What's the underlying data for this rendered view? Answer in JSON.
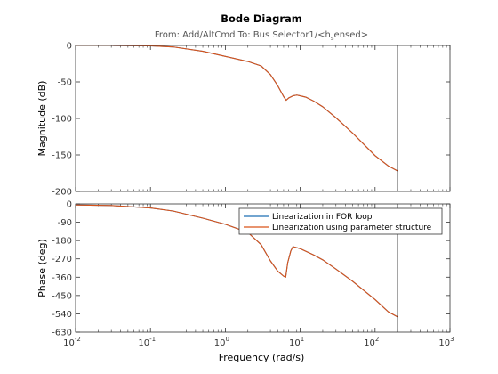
{
  "chart_data": {
    "type": "line",
    "title": "Bode Diagram",
    "subtitle_prefix": "From: Add/AltCmd  To: Bus Selector1/<h",
    "subtitle_sub": "s",
    "subtitle_suffix": "ensed>",
    "xlabel": "Frequency  (rad/s)",
    "xscale": "log",
    "xlim": [
      0.01,
      1000
    ],
    "x_tick_labels": [
      {
        "base": "10",
        "exp": "-2"
      },
      {
        "base": "10",
        "exp": "-1"
      },
      {
        "base": "10",
        "exp": "0"
      },
      {
        "base": "10",
        "exp": "1"
      },
      {
        "base": "10",
        "exp": "2"
      },
      {
        "base": "10",
        "exp": "3"
      }
    ],
    "vertical_marker_x": 200,
    "legend": {
      "placement": "upper-right of phase plot",
      "entries": [
        "Linearization in FOR loop",
        "Linearization using parameter structure"
      ]
    },
    "colors": {
      "series1": "#1f6fb4",
      "series2": "#d95319",
      "marker": "#000000",
      "axes": "#333333"
    },
    "panels": [
      {
        "name": "magnitude",
        "ylabel": "Magnitude (dB)",
        "ylim": [
          -200,
          0
        ],
        "yticks": [
          0,
          -50,
          -100,
          -150,
          -200
        ],
        "series": [
          {
            "name": "Linearization in FOR loop",
            "x": [
              0.01,
              0.03,
              0.1,
              0.2,
              0.5,
              1,
              2,
              3,
              4,
              5,
              6,
              6.5,
              7,
              8,
              9,
              10,
              12,
              15,
              20,
              30,
              50,
              100,
              150,
              200
            ],
            "y": [
              0,
              0,
              -0.5,
              -2,
              -8,
              -15,
              -22,
              -28,
              -40,
              -55,
              -70,
              -75,
              -72,
              -69,
              -68,
              -69,
              -71,
              -76,
              -84,
              -99,
              -120,
              -151,
              -165,
              -172
            ]
          },
          {
            "name": "Linearization using parameter structure",
            "x": [
              0.01,
              0.03,
              0.1,
              0.2,
              0.5,
              1,
              2,
              3,
              4,
              5,
              6,
              6.5,
              7,
              8,
              9,
              10,
              12,
              15,
              20,
              30,
              50,
              100,
              150,
              200
            ],
            "y": [
              0,
              0,
              -0.5,
              -2,
              -8,
              -15,
              -22,
              -28,
              -40,
              -55,
              -70,
              -75,
              -72,
              -69,
              -68,
              -69,
              -71,
              -76,
              -84,
              -99,
              -120,
              -151,
              -165,
              -172
            ]
          }
        ]
      },
      {
        "name": "phase",
        "ylabel": "Phase (deg)",
        "ylim": [
          -630,
          0
        ],
        "yticks": [
          0,
          -90,
          -180,
          -270,
          -360,
          -450,
          -540,
          -630
        ],
        "series": [
          {
            "name": "Linearization in FOR loop",
            "x": [
              0.01,
              0.03,
              0.1,
              0.2,
              0.5,
              1,
              2,
              3,
              4,
              5,
              6,
              6.4,
              6.8,
              7.5,
              8,
              9,
              10,
              15,
              20,
              30,
              50,
              100,
              150,
              200
            ],
            "y": [
              -5,
              -8,
              -20,
              -35,
              -70,
              -100,
              -140,
              -200,
              -280,
              -330,
              -355,
              -360,
              -290,
              -230,
              -210,
              -215,
              -220,
              -250,
              -275,
              -320,
              -380,
              -470,
              -530,
              -555
            ]
          },
          {
            "name": "Linearization using parameter structure",
            "x": [
              0.01,
              0.03,
              0.1,
              0.2,
              0.5,
              1,
              2,
              3,
              4,
              5,
              6,
              6.4,
              6.8,
              7.5,
              8,
              9,
              10,
              15,
              20,
              30,
              50,
              100,
              150,
              200
            ],
            "y": [
              -5,
              -8,
              -20,
              -35,
              -70,
              -100,
              -140,
              -200,
              -280,
              -330,
              -355,
              -360,
              -290,
              -230,
              -210,
              -215,
              -220,
              -250,
              -275,
              -320,
              -380,
              -470,
              -530,
              -555
            ]
          }
        ]
      }
    ]
  }
}
